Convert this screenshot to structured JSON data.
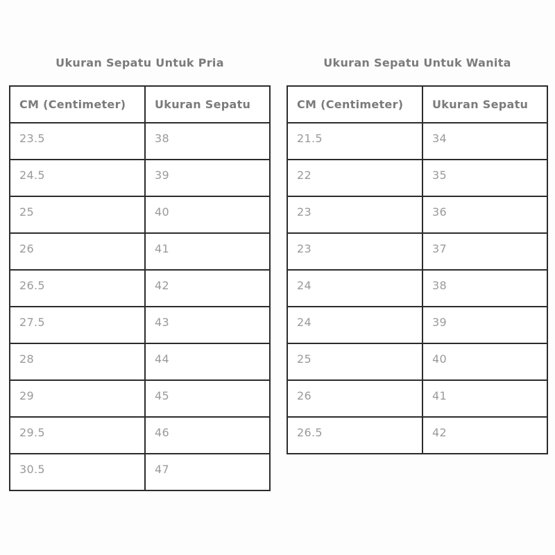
{
  "page": {
    "description": "Shoe size conversion charts image",
    "background": "#fdfdfd"
  },
  "colors": {
    "table_border": "#2b2b2b",
    "title_text": "#7b7b7b",
    "header_text": "#7b7b7b",
    "cell_text": "#9a9a9a",
    "table_background": "#ffffff"
  },
  "chart_data": [
    {
      "type": "table",
      "title": "Ukuran Sepatu Untuk Pria",
      "columns": [
        "CM (Centimeter)",
        "Ukuran Sepatu"
      ],
      "rows": [
        [
          "23.5",
          "38"
        ],
        [
          "24.5",
          "39"
        ],
        [
          "25",
          "40"
        ],
        [
          "26",
          "41"
        ],
        [
          "26.5",
          "42"
        ],
        [
          "27.5",
          "43"
        ],
        [
          "28",
          "44"
        ],
        [
          "29",
          "45"
        ],
        [
          "29.5",
          "46"
        ],
        [
          "30.5",
          "47"
        ]
      ]
    },
    {
      "type": "table",
      "title": "Ukuran Sepatu Untuk Wanita",
      "columns": [
        "CM (Centimeter)",
        "Ukuran Sepatu"
      ],
      "rows": [
        [
          "21.5",
          "34"
        ],
        [
          "22",
          "35"
        ],
        [
          "23",
          "36"
        ],
        [
          "23",
          "37"
        ],
        [
          "24",
          "38"
        ],
        [
          "24",
          "39"
        ],
        [
          "25",
          "40"
        ],
        [
          "26",
          "41"
        ],
        [
          "26.5",
          "42"
        ]
      ]
    }
  ]
}
